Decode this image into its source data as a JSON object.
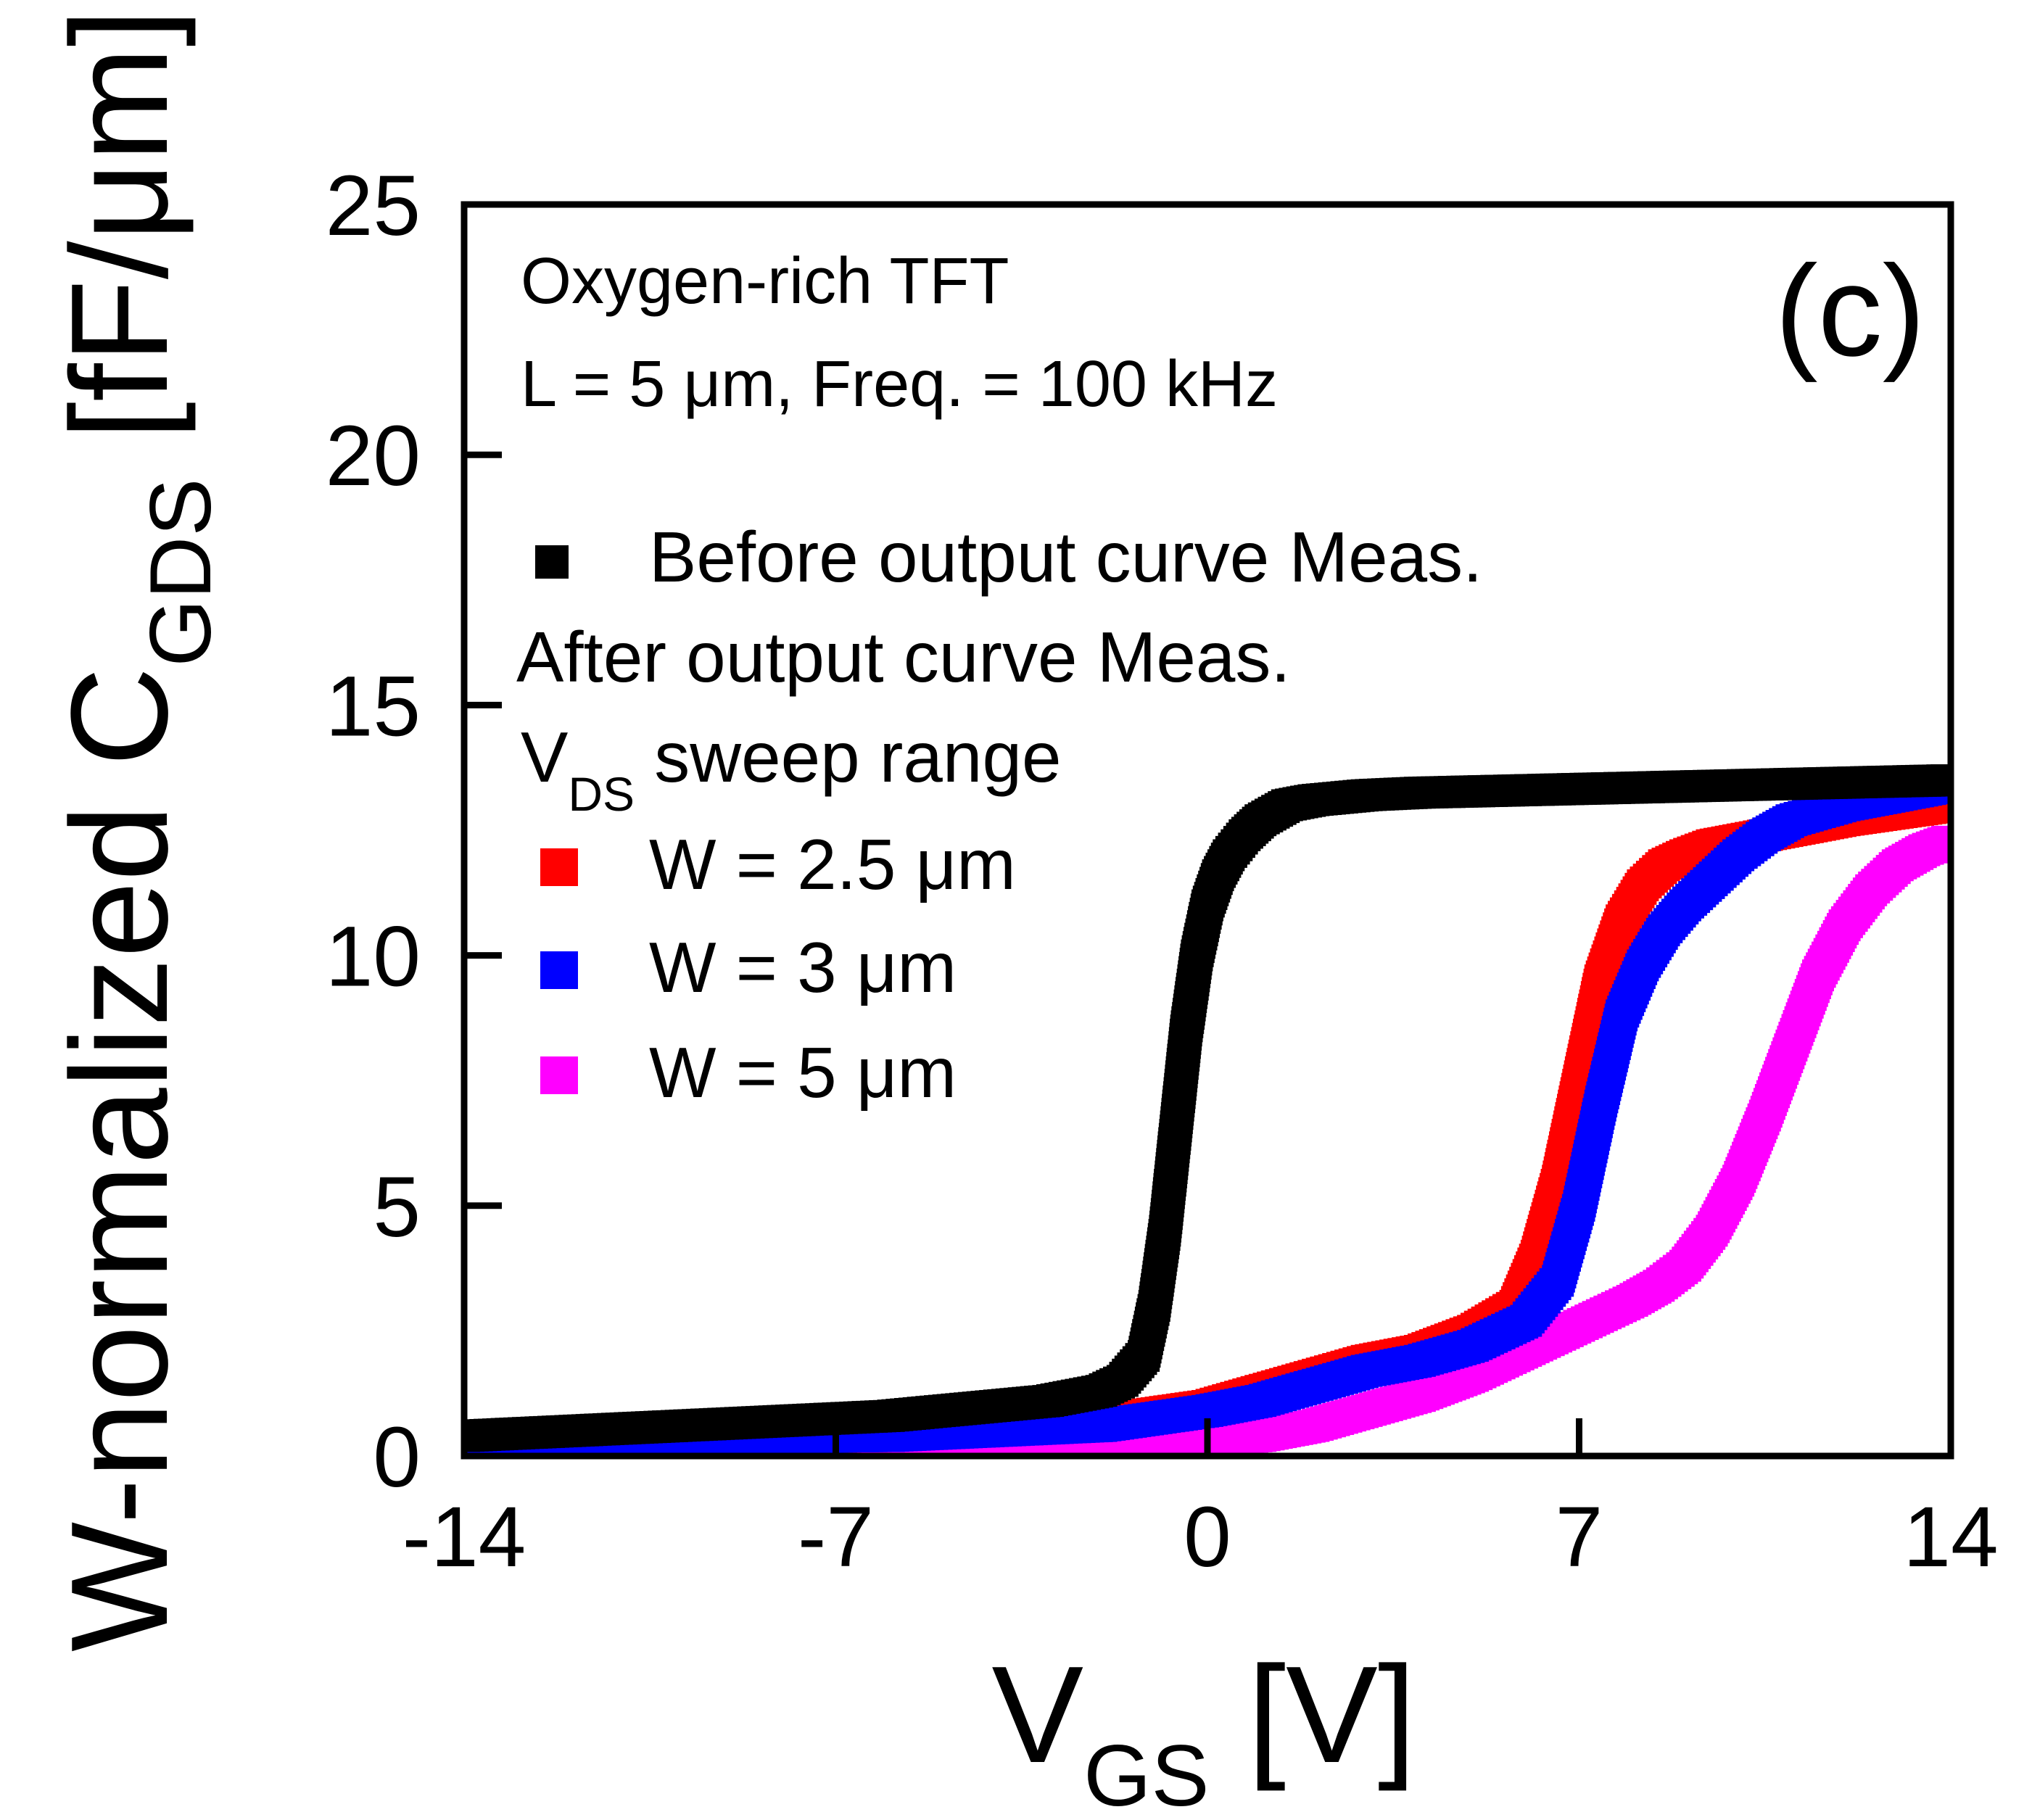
{
  "chart_data": {
    "type": "scatter",
    "panel_label": "(c)",
    "annotations": {
      "line1": "Oxygen-rich TFT",
      "line2": "L = 5 μm, Freq. = 100 kHz",
      "legend_header": "After output curve Meas.",
      "vds_main": "V",
      "vds_sub": "DS",
      "vds_rest": " sweep range"
    },
    "xlabel": {
      "main": "V",
      "sub": "GS",
      "rest": " [V]"
    },
    "ylabel": {
      "pre": "W-normalized C",
      "sub": "GDS",
      "rest": " [fF/μm]"
    },
    "xlim": [
      -14,
      14
    ],
    "ylim": [
      0,
      25
    ],
    "xticks": [
      -14,
      -7,
      0,
      7,
      14
    ],
    "xtick_labels": [
      "-14",
      "-7",
      "0",
      "7",
      "14"
    ],
    "yticks": [
      0,
      5,
      10,
      15,
      20,
      25
    ],
    "ytick_labels": [
      "0",
      "5",
      "10",
      "15",
      "20",
      "25"
    ],
    "legend_position": "upper-left",
    "series": [
      {
        "name": "Before output curve Meas.",
        "color": "#000000",
        "marker": "square",
        "x": [
          -14,
          -12,
          -10,
          -8,
          -6,
          -4,
          -3,
          -2,
          -1.6,
          -1.2,
          -1.0,
          -0.8,
          -0.6,
          -0.4,
          -0.2,
          0.0,
          0.2,
          0.4,
          0.7,
          1.0,
          1.5,
          2,
          3,
          4,
          6,
          8,
          10,
          12,
          14
        ],
        "y": [
          0.4,
          0.5,
          0.6,
          0.7,
          0.8,
          1.0,
          1.1,
          1.3,
          1.5,
          2.0,
          3.0,
          4.5,
          6.5,
          8.5,
          10.0,
          11.0,
          11.6,
          12.0,
          12.4,
          12.7,
          13.0,
          13.1,
          13.2,
          13.25,
          13.3,
          13.35,
          13.4,
          13.45,
          13.5
        ]
      },
      {
        "name": "W = 2.5 μm",
        "color": "#ff0000",
        "marker": "square",
        "x": [
          -14,
          -10,
          -6,
          -2,
          0,
          1,
          2,
          3,
          4,
          5,
          5.8,
          6.2,
          6.6,
          7.0,
          7.4,
          7.8,
          8.2,
          8.6,
          9.0,
          9.5,
          10,
          11,
          12,
          13,
          14
        ],
        "y": [
          0.3,
          0.35,
          0.4,
          0.7,
          1.0,
          1.3,
          1.6,
          1.9,
          2.1,
          2.5,
          3.0,
          4.0,
          5.5,
          7.5,
          9.5,
          10.7,
          11.4,
          11.8,
          12.0,
          12.2,
          12.3,
          12.5,
          12.7,
          12.85,
          13.0
        ]
      },
      {
        "name": "W = 3 μm",
        "color": "#0000ff",
        "marker": "square",
        "x": [
          -14,
          -10,
          -6,
          -2,
          0,
          1,
          2,
          3,
          4,
          5,
          6,
          6.6,
          7.0,
          7.4,
          7.8,
          8.2,
          8.6,
          9.0,
          9.5,
          10,
          10.5,
          11,
          12,
          13,
          14
        ],
        "y": [
          0.3,
          0.35,
          0.4,
          0.6,
          0.9,
          1.1,
          1.4,
          1.7,
          1.9,
          2.2,
          2.7,
          3.5,
          5.0,
          7.0,
          8.8,
          9.8,
          10.5,
          11.0,
          11.5,
          12.0,
          12.4,
          12.7,
          13.0,
          13.2,
          13.4
        ]
      },
      {
        "name": "W = 5 μm",
        "color": "#ff00ff",
        "marker": "square",
        "x": [
          -14,
          -10,
          -6,
          -2,
          0,
          1,
          2,
          3,
          4,
          5,
          6,
          7,
          8,
          8.5,
          9,
          9.5,
          10,
          10.5,
          11,
          11.5,
          12,
          12.5,
          13,
          13.5,
          14
        ],
        "y": [
          0.3,
          0.3,
          0.3,
          0.3,
          0.3,
          0.4,
          0.6,
          0.9,
          1.2,
          1.6,
          2.1,
          2.6,
          3.1,
          3.4,
          3.8,
          4.5,
          5.5,
          6.8,
          8.2,
          9.6,
          10.6,
          11.3,
          11.8,
          12.1,
          12.3
        ]
      }
    ]
  }
}
